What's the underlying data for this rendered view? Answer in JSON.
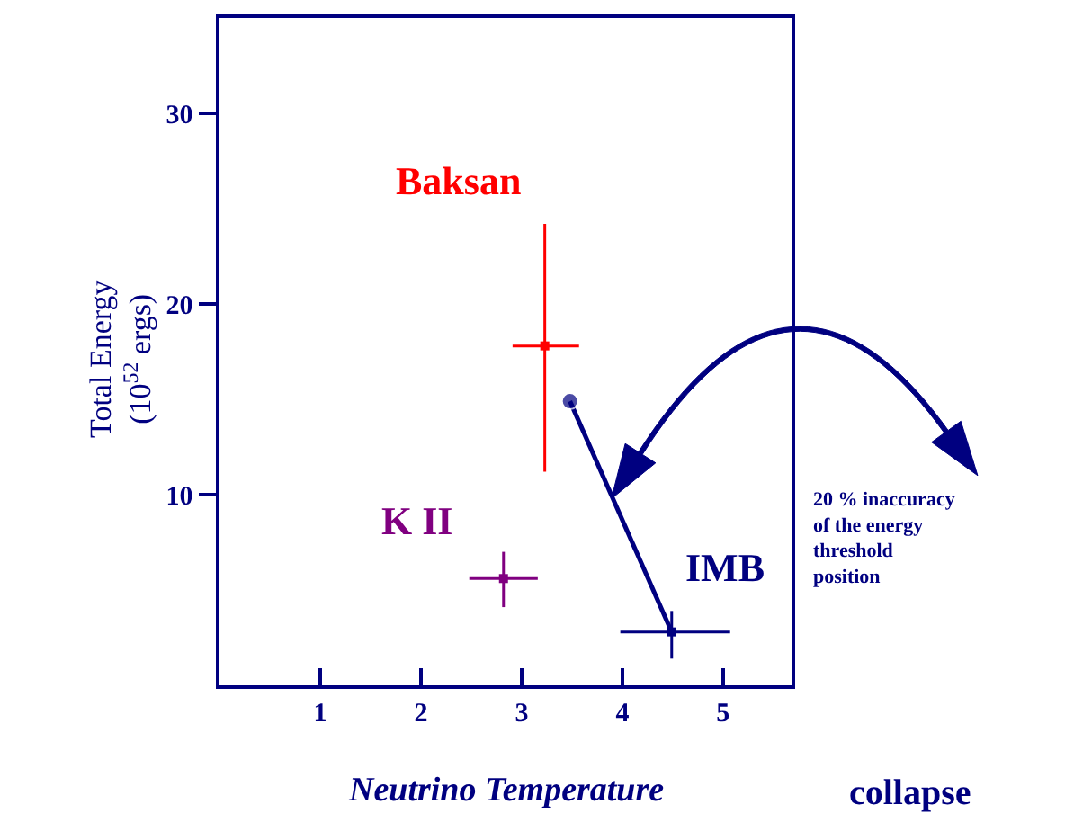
{
  "chart_data": {
    "type": "scatter",
    "xlabel": "Neutrino Temperature",
    "ylabel": "Total Energy\n(10$^{52}$ ergs)",
    "xlim": [
      0,
      5.68
    ],
    "xticks": [
      1,
      2,
      3,
      4,
      5
    ],
    "ylim": [
      0,
      35
    ],
    "yticks": [
      10,
      20,
      30
    ],
    "legend": false,
    "marker": "square",
    "series": [
      {
        "name": "Baksan",
        "color": "#ff0000",
        "x": [
          3.23
        ],
        "values": [
          17.8
        ],
        "errors": [
          [
            11.2,
            24.2
          ]
        ],
        "xerrors": [
          [
            2.91,
            3.57
          ]
        ]
      },
      {
        "name": "K II",
        "color": "#800080",
        "x": [
          2.82
        ],
        "values": [
          5.6
        ],
        "errors": [
          [
            4.1,
            7.0
          ]
        ],
        "xerrors": [
          [
            2.48,
            3.16
          ]
        ]
      },
      {
        "name": "IMB",
        "color": "#000080",
        "x": [
          4.49
        ],
        "values": [
          2.8
        ],
        "errors": [
          [
            1.4,
            3.9
          ]
        ],
        "xerrors": [
          [
            3.98,
            5.07
          ]
        ]
      },
      {
        "type": "line",
        "marker": "circle",
        "color": "#000080",
        "x": [
          4.49,
          3.48
        ],
        "values": [
          2.8,
          14.9
        ]
      }
    ],
    "annotations": [
      "20 % inaccuracy\nof the energy\nthreshold\nposition",
      "collapse"
    ]
  }
}
